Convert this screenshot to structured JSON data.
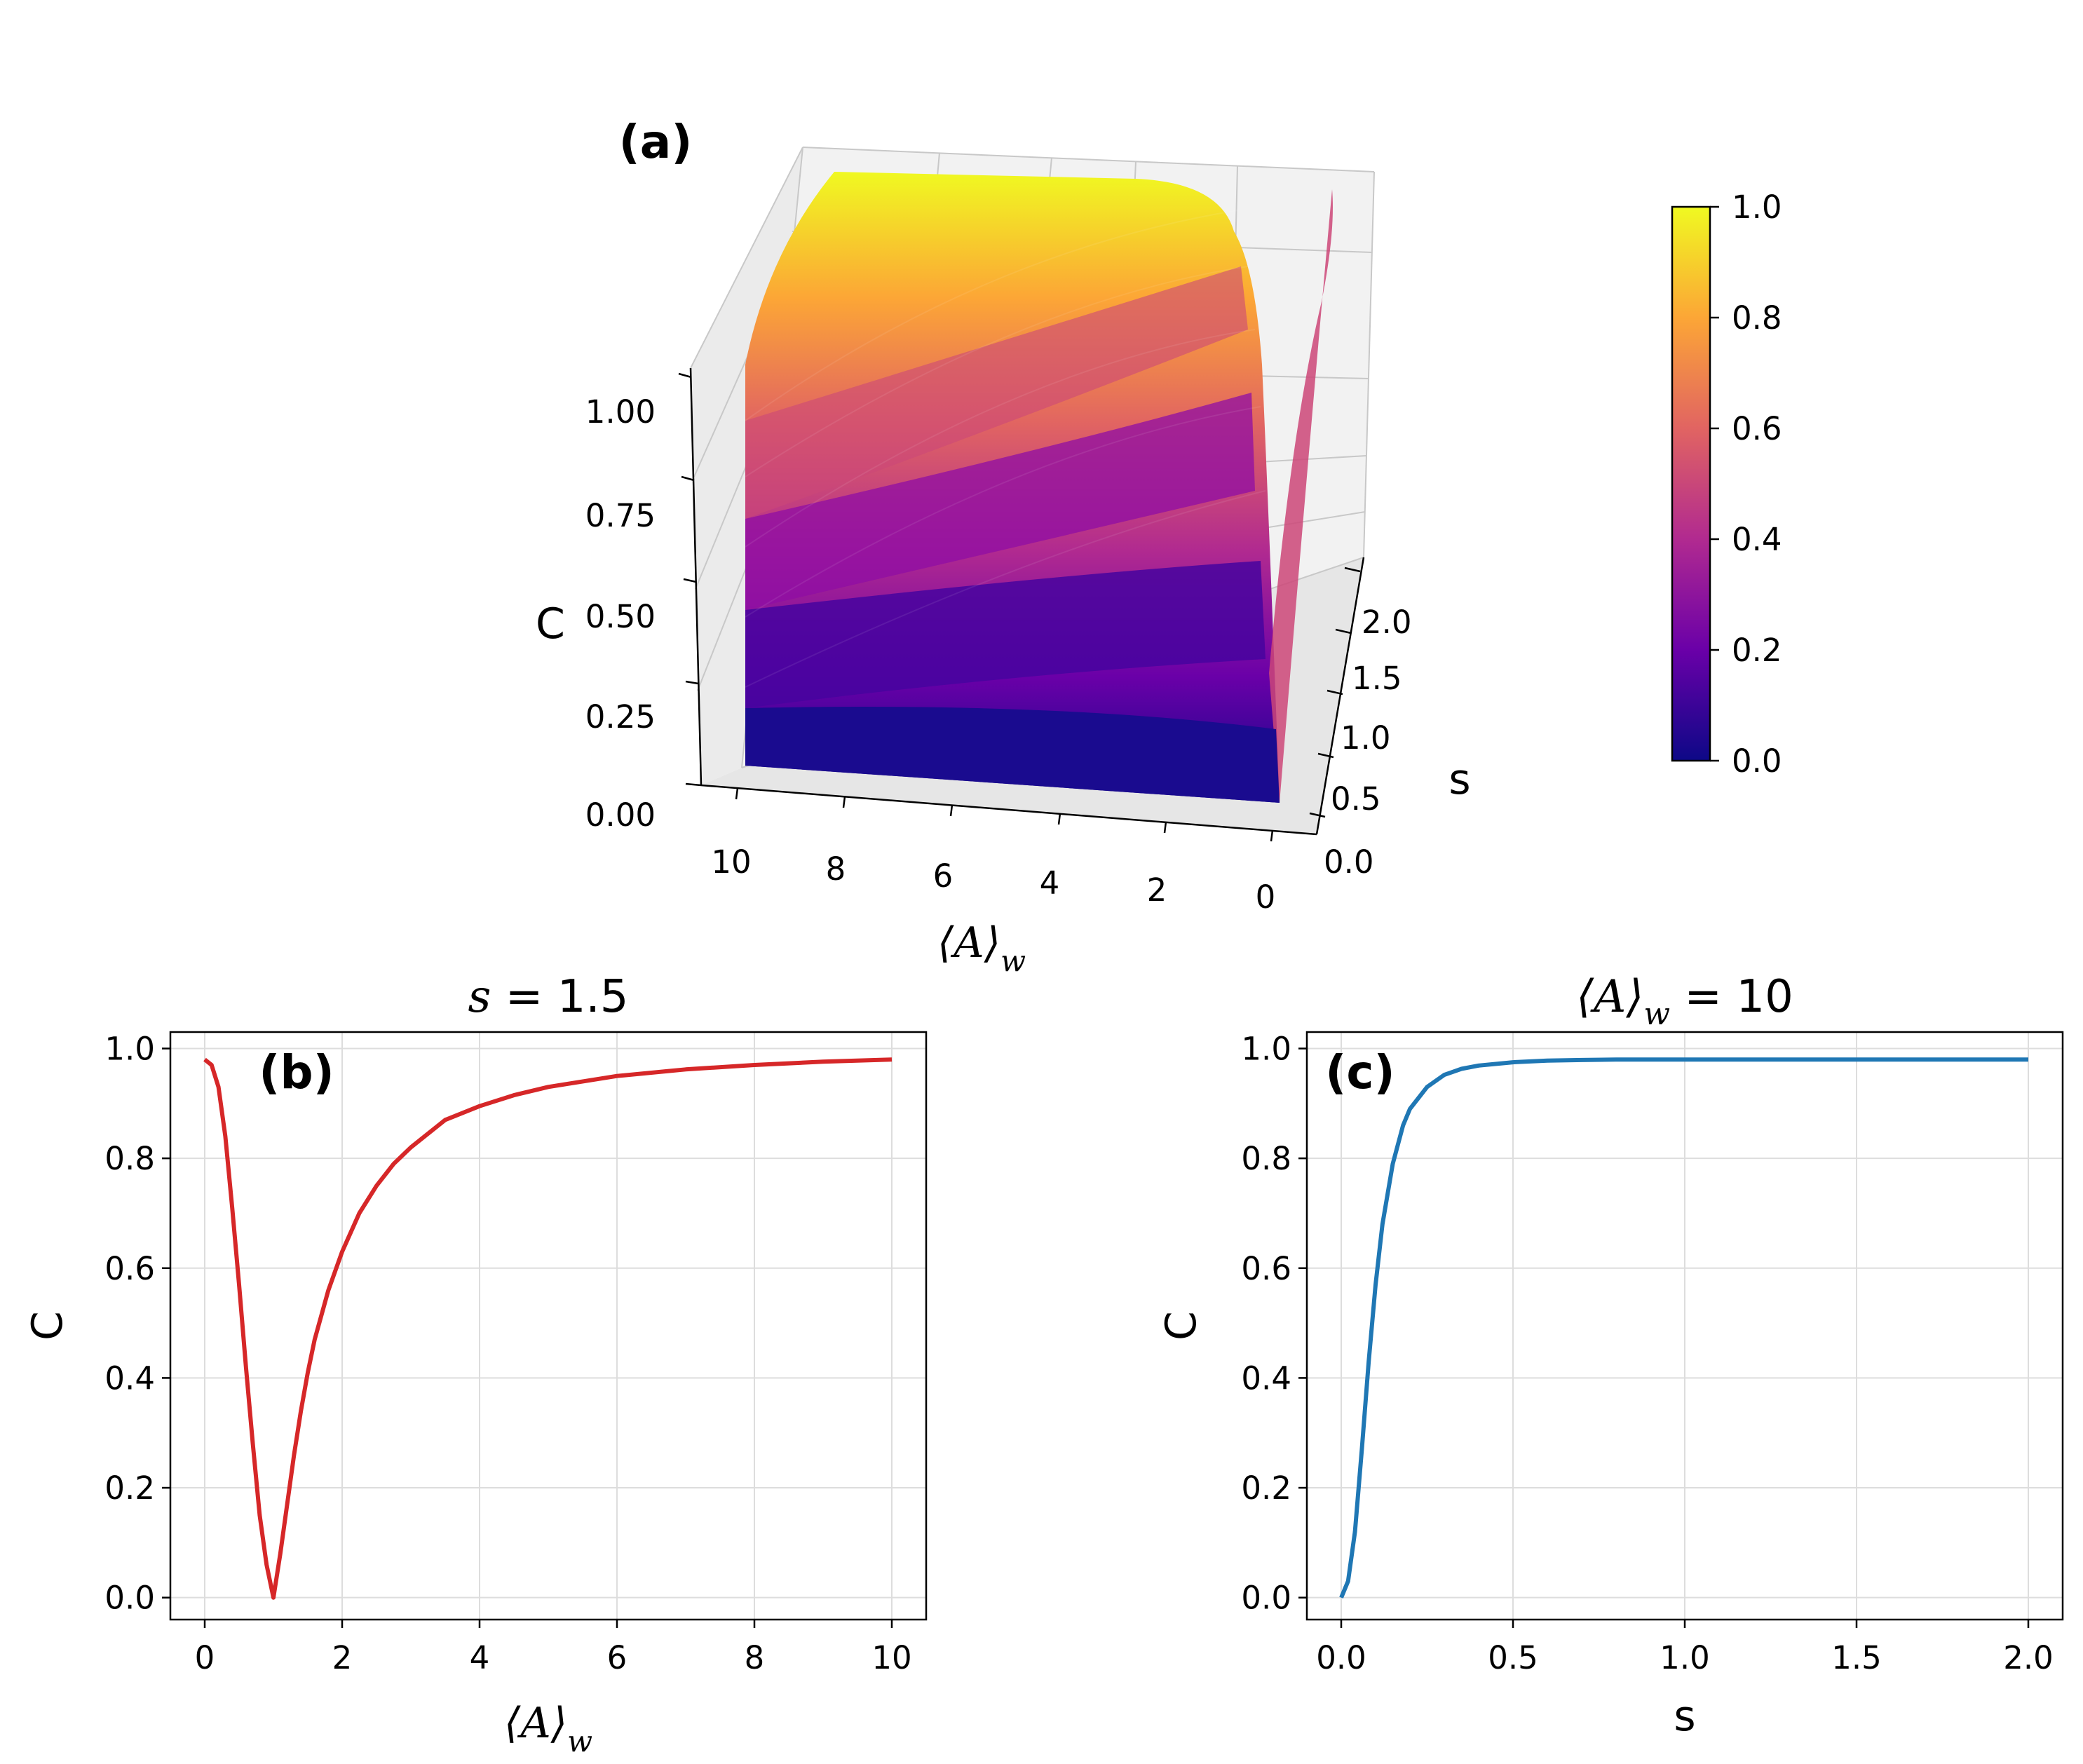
{
  "chart_data": [
    {
      "panel_label": "(a)",
      "type": "surface",
      "x_label": "⟨A⟩",
      "x_label_subscript": "w",
      "y_label": "s",
      "z_label": "C",
      "x_range": [
        0,
        10
      ],
      "y_range": [
        0,
        2
      ],
      "z_range": [
        0,
        1
      ],
      "x_ticks": [
        "10",
        "8",
        "6",
        "4",
        "2",
        "0"
      ],
      "y_ticks": [
        "0.0",
        "0.5",
        "1.0",
        "1.5",
        "2.0"
      ],
      "z_ticks": [
        "0.00",
        "0.25",
        "0.50",
        "0.75",
        "1.00"
      ],
      "colormap": "plasma",
      "colorbar_ticks": [
        "0.0",
        "0.2",
        "0.4",
        "0.6",
        "0.8",
        "1.0"
      ],
      "colorbar_range": [
        0,
        1
      ],
      "colormap_colors": [
        "#0d0887",
        "#6a00a8",
        "#b12a90",
        "#e16462",
        "#fca636",
        "#f0f921"
      ]
    },
    {
      "panel_label": "(b)",
      "type": "line",
      "title_var": "s",
      "title_value": "1.5",
      "x_label": "⟨A⟩",
      "x_label_subscript": "w",
      "y_label": "C",
      "x_range": [
        -0.5,
        10.5
      ],
      "y_range": [
        -0.04,
        1.03
      ],
      "x_ticks": [
        "0",
        "2",
        "4",
        "6",
        "8",
        "10"
      ],
      "y_ticks": [
        "0.0",
        "0.2",
        "0.4",
        "0.6",
        "0.8",
        "1.0"
      ],
      "grid": true,
      "color": "#d62728",
      "series": [
        {
          "name": "C(⟨A⟩_w), s=1.5",
          "x": [
            0,
            0.1,
            0.2,
            0.3,
            0.4,
            0.5,
            0.6,
            0.7,
            0.8,
            0.9,
            1.0,
            1.1,
            1.2,
            1.3,
            1.4,
            1.5,
            1.6,
            1.8,
            2.0,
            2.25,
            2.5,
            2.75,
            3.0,
            3.5,
            4.0,
            4.5,
            5.0,
            6.0,
            7.0,
            8.0,
            9.0,
            10.0
          ],
          "y": [
            0.98,
            0.97,
            0.93,
            0.84,
            0.71,
            0.57,
            0.42,
            0.28,
            0.15,
            0.06,
            0.0,
            0.08,
            0.17,
            0.26,
            0.34,
            0.41,
            0.47,
            0.56,
            0.63,
            0.7,
            0.75,
            0.79,
            0.82,
            0.87,
            0.895,
            0.915,
            0.93,
            0.95,
            0.962,
            0.97,
            0.976,
            0.98
          ]
        }
      ]
    },
    {
      "panel_label": "(c)",
      "type": "line",
      "title_var": "⟨A⟩",
      "title_var_subscript": "w",
      "title_value": "10",
      "x_label": "s",
      "y_label": "C",
      "x_range": [
        -0.1,
        2.1
      ],
      "y_range": [
        -0.04,
        1.03
      ],
      "x_ticks": [
        "0.0",
        "0.5",
        "1.0",
        "1.5",
        "2.0"
      ],
      "y_ticks": [
        "0.0",
        "0.2",
        "0.4",
        "0.6",
        "0.8",
        "1.0"
      ],
      "grid": true,
      "color": "#1f77b4",
      "series": [
        {
          "name": "C(s), ⟨A⟩_w=10",
          "x": [
            0.0,
            0.02,
            0.04,
            0.06,
            0.08,
            0.1,
            0.12,
            0.15,
            0.18,
            0.2,
            0.25,
            0.3,
            0.35,
            0.4,
            0.5,
            0.6,
            0.7,
            0.8,
            1.0,
            1.25,
            1.5,
            1.75,
            2.0
          ],
          "y": [
            0.0,
            0.03,
            0.12,
            0.27,
            0.43,
            0.57,
            0.68,
            0.79,
            0.86,
            0.89,
            0.93,
            0.952,
            0.963,
            0.969,
            0.975,
            0.978,
            0.979,
            0.98,
            0.98,
            0.98,
            0.98,
            0.98,
            0.98
          ]
        }
      ]
    }
  ]
}
